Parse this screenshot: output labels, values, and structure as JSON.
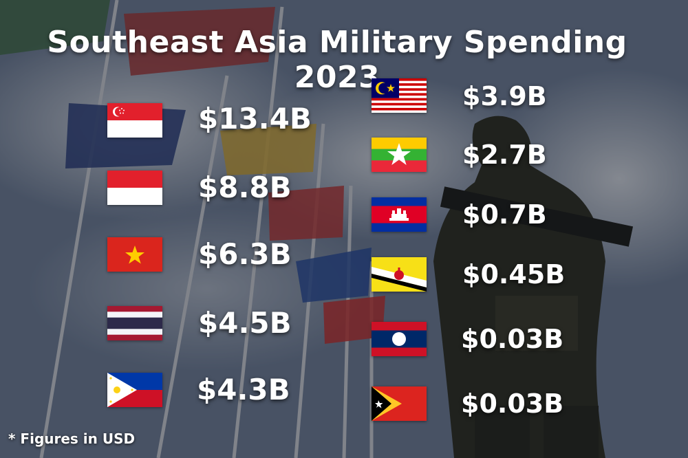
{
  "title": "Southeast Asia Military Spending 2023",
  "footnote": "* Figures in USD",
  "left_column": [
    {
      "flag_icon": "singapore-flag-icon",
      "amount": "$13.4B"
    },
    {
      "flag_icon": "indonesia-flag-icon",
      "amount": "$8.8B"
    },
    {
      "flag_icon": "vietnam-flag-icon",
      "amount": "$6.3B"
    },
    {
      "flag_icon": "thailand-flag-icon",
      "amount": "$4.5B"
    },
    {
      "flag_icon": "philippines-flag-icon",
      "amount": "$4.3B"
    }
  ],
  "right_column": [
    {
      "flag_icon": "malaysia-flag-icon",
      "amount": "$3.9B"
    },
    {
      "flag_icon": "myanmar-flag-icon",
      "amount": "$2.7B"
    },
    {
      "flag_icon": "cambodia-flag-icon",
      "amount": "$0.7B"
    },
    {
      "flag_icon": "brunei-flag-icon",
      "amount": "$0.45B"
    },
    {
      "flag_icon": "laos-flag-icon",
      "amount": "$0.03B"
    },
    {
      "flag_icon": "timor-leste-flag-icon",
      "amount": "$0.03B"
    }
  ]
}
